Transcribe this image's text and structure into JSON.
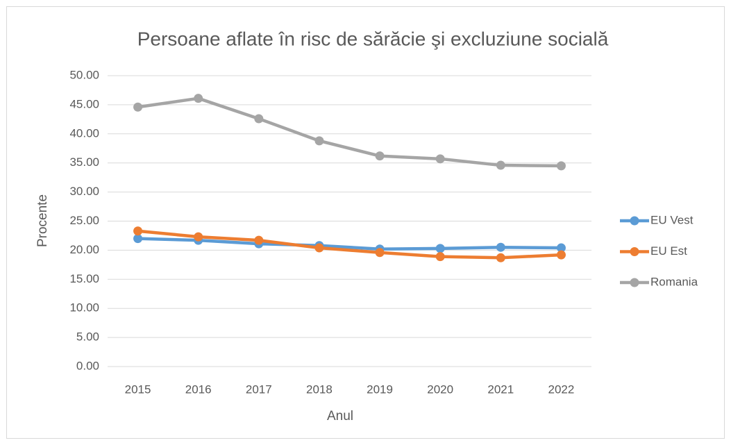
{
  "chart_data": {
    "type": "line",
    "title": "Persoane aflate în risc de sărăcie şi excluziune socială",
    "x_label": "Anul",
    "y_label": "Procente",
    "categories": [
      "2015",
      "2016",
      "2017",
      "2018",
      "2019",
      "2020",
      "2021",
      "2022"
    ],
    "series": [
      {
        "name": "EU Vest",
        "color": "#5b9bd5",
        "values": [
          22.0,
          21.7,
          21.1,
          20.8,
          20.2,
          20.3,
          20.5,
          20.4
        ]
      },
      {
        "name": "EU Est",
        "color": "#ed7d31",
        "values": [
          23.3,
          22.3,
          21.7,
          20.4,
          19.6,
          18.9,
          18.7,
          19.2
        ]
      },
      {
        "name": "Romania",
        "color": "#a5a5a5",
        "values": [
          44.6,
          46.1,
          42.6,
          38.8,
          36.2,
          35.7,
          34.6,
          34.5
        ]
      }
    ],
    "ylim": [
      0,
      50
    ],
    "yticks": [
      {
        "value": 0,
        "label": "0.00"
      },
      {
        "value": 5,
        "label": "5.00"
      },
      {
        "value": 10,
        "label": "10.00"
      },
      {
        "value": 15,
        "label": "15.00"
      },
      {
        "value": 20,
        "label": "20.00"
      },
      {
        "value": 25,
        "label": "25.00"
      },
      {
        "value": 30,
        "label": "30.00"
      },
      {
        "value": 35,
        "label": "35.00"
      },
      {
        "value": 40,
        "label": "40.00"
      },
      {
        "value": 45,
        "label": "45.00"
      },
      {
        "value": 50,
        "label": "50.00"
      }
    ],
    "grid": true,
    "legend": "right"
  }
}
